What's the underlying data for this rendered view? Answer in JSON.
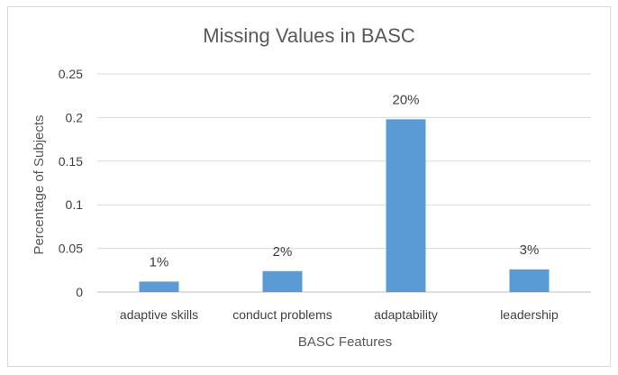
{
  "chart_data": {
    "type": "bar",
    "title": "Missing Values in BASC",
    "xlabel": "BASC Features",
    "ylabel": "Percentage of Subjects",
    "categories": [
      "adaptive skills",
      "conduct problems",
      "adaptability",
      "leadership"
    ],
    "values": [
      0.012,
      0.024,
      0.198,
      0.026
    ],
    "data_labels": [
      "1%",
      "2%",
      "20%",
      "3%"
    ],
    "y_ticks": [
      "0",
      "0.05",
      "0.1",
      "0.15",
      "0.2",
      "0.25"
    ],
    "ylim": [
      0,
      0.25
    ],
    "grid": true,
    "legend": "none",
    "colors": {
      "bar": "#5b9bd5",
      "grid": "#d9d9d9",
      "axis": "#bfbfbf",
      "frame": "#d9d9d9"
    }
  }
}
